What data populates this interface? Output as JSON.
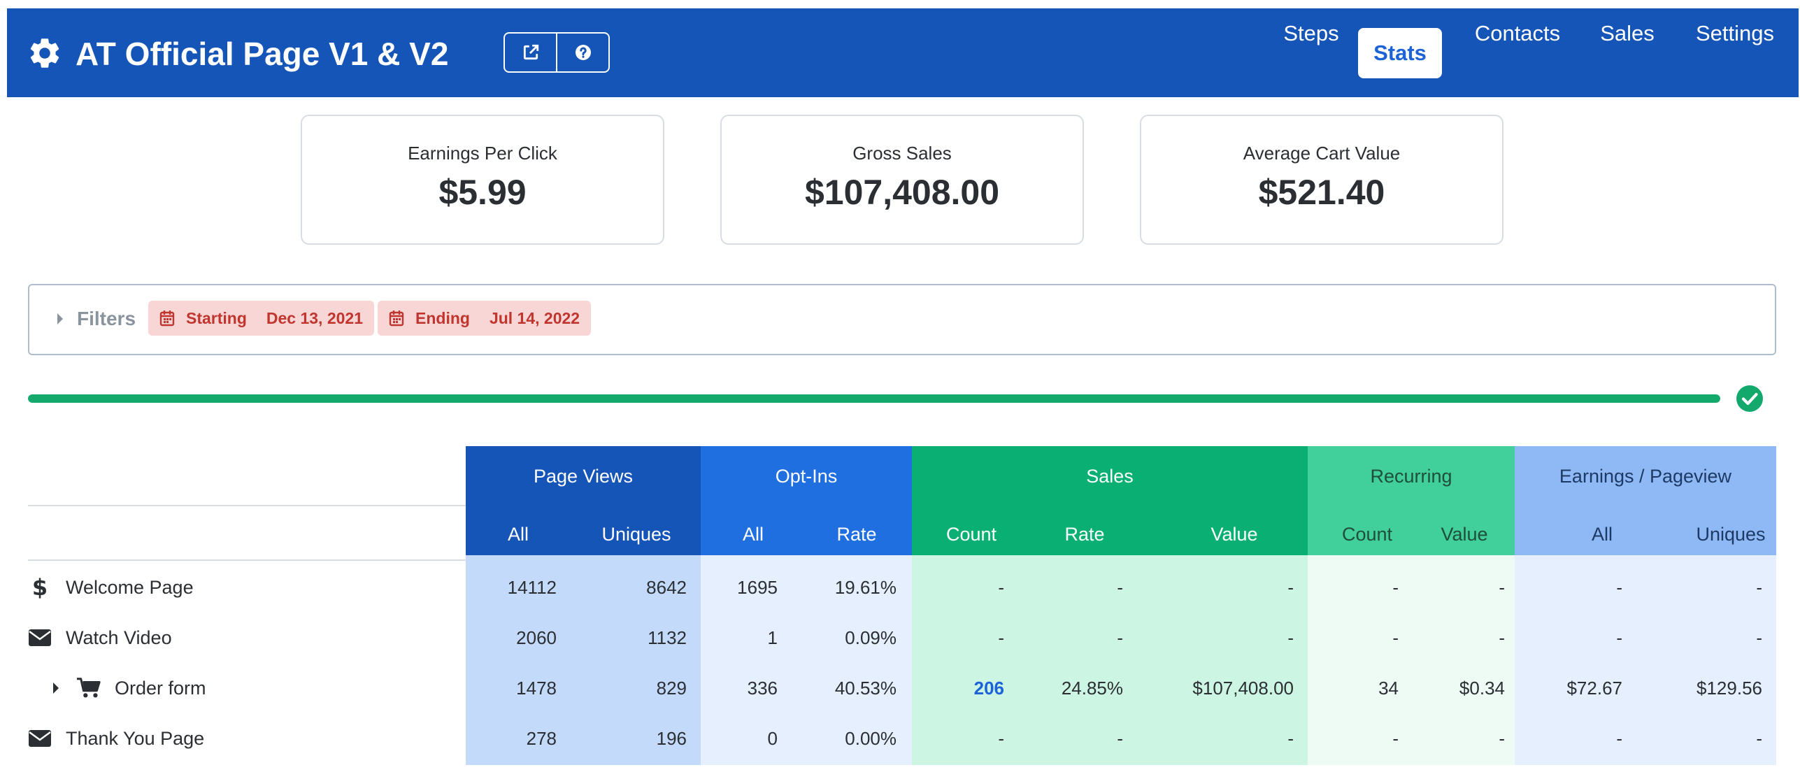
{
  "header": {
    "title": "AT Official Page V1 & V2",
    "gear_icon": "gear-icon",
    "tools": [
      {
        "icon": "external-link-icon"
      },
      {
        "icon": "help-circle-icon"
      }
    ],
    "nav": [
      {
        "label": "Steps",
        "active": false
      },
      {
        "label": "Stats",
        "active": true
      },
      {
        "label": "Contacts",
        "active": false
      },
      {
        "label": "Sales",
        "active": false
      },
      {
        "label": "Settings",
        "active": false
      }
    ]
  },
  "cards": [
    {
      "label": "Earnings Per Click",
      "value": "$5.99"
    },
    {
      "label": "Gross Sales",
      "value": "$107,408.00"
    },
    {
      "label": "Average Cart Value",
      "value": "$521.40"
    }
  ],
  "filters": {
    "label": "Filters",
    "starting": {
      "key": "Starting",
      "value": "Dec 13, 2021"
    },
    "ending": {
      "key": "Ending",
      "value": "Jul 14, 2022"
    }
  },
  "progress": {
    "percent": 100,
    "complete": true
  },
  "colors": {
    "header": "#1655b8",
    "page_views": "#1655b8",
    "opt_ins": "#1f6fe0",
    "sales": "#0aaf73",
    "recurring": "#41cf9b",
    "earnings": "#8fb9f5",
    "chip_bg": "#f9d6d6",
    "chip_text": "#c0352e",
    "progress": "#14a96c"
  },
  "table": {
    "groups": [
      {
        "label": "Page Views",
        "sub": [
          "All",
          "Uniques"
        ]
      },
      {
        "label": "Opt-Ins",
        "sub": [
          "All",
          "Rate"
        ]
      },
      {
        "label": "Sales",
        "sub": [
          "Count",
          "Rate",
          "Value"
        ]
      },
      {
        "label": "Recurring",
        "sub": [
          "Count",
          "Value"
        ]
      },
      {
        "label": "Earnings / Pageview",
        "sub": [
          "All",
          "Uniques"
        ]
      }
    ],
    "rows": [
      {
        "name": "Welcome Page",
        "icon": "dollar-icon",
        "expandable": false,
        "cells": [
          "14112",
          "8642",
          "1695",
          "19.61%",
          "-",
          "-",
          "-",
          "-",
          "-",
          "-",
          "-"
        ]
      },
      {
        "name": "Watch Video",
        "icon": "envelope-icon",
        "expandable": false,
        "cells": [
          "2060",
          "1132",
          "1",
          "0.09%",
          "-",
          "-",
          "-",
          "-",
          "-",
          "-",
          "-"
        ]
      },
      {
        "name": "Order form",
        "icon": "cart-icon",
        "expandable": true,
        "cells": [
          "1478",
          "829",
          "336",
          "40.53%",
          "206",
          "24.85%",
          "$107,408.00",
          "34",
          "$0.34",
          "$72.67",
          "$129.56"
        ]
      },
      {
        "name": "Thank You Page",
        "icon": "envelope-icon",
        "expandable": false,
        "cells": [
          "278",
          "196",
          "0",
          "0.00%",
          "-",
          "-",
          "-",
          "-",
          "-",
          "-",
          "-"
        ]
      }
    ]
  }
}
